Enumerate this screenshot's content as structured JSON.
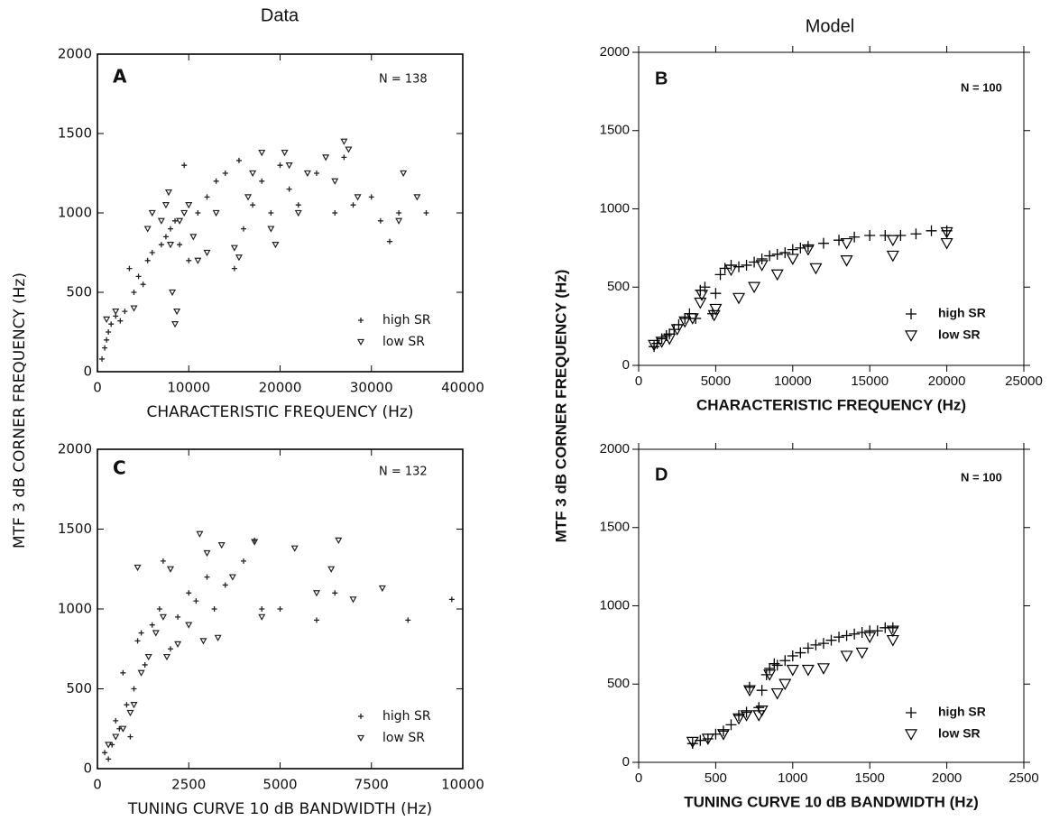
{
  "figure": {
    "column_titles": [
      "Data",
      "Model"
    ],
    "y_labels": [
      "MTF 3 dB CORNER FREQUENCY (Hz)",
      "MTF  3  dB  CORNER  FREQUENCY  (Hz)"
    ]
  },
  "chart_data": [
    {
      "type": "scatter",
      "panel": "A",
      "annotation": "N = 138",
      "x_label": "CHARACTERISTIC FREQUENCY (Hz)",
      "xlim": [
        0,
        40000
      ],
      "xticks": [
        0,
        10000,
        20000,
        30000,
        40000
      ],
      "ylim": [
        0,
        2000
      ],
      "yticks": [
        0,
        500,
        1000,
        1500,
        2000
      ],
      "legend": "lower right",
      "series": [
        {
          "name": "high SR",
          "marker": "plus",
          "color": "#222",
          "x": [
            500,
            800,
            1000,
            1200,
            1500,
            2000,
            2500,
            3000,
            3500,
            4000,
            4500,
            5000,
            5500,
            6000,
            7000,
            7500,
            8000,
            8500,
            9000,
            9500,
            10000,
            11000,
            12000,
            13000,
            14000,
            15000,
            15500,
            16000,
            17000,
            18000,
            19000,
            20000,
            21000,
            22000,
            24000,
            26000,
            27000,
            28000,
            30000,
            31000,
            32000,
            33000,
            36000
          ],
          "values": [
            80,
            150,
            200,
            250,
            300,
            350,
            320,
            380,
            650,
            500,
            600,
            550,
            700,
            750,
            800,
            850,
            900,
            950,
            800,
            1300,
            700,
            1000,
            1100,
            1200,
            1250,
            650,
            1330,
            900,
            1050,
            1200,
            1000,
            1300,
            1150,
            1050,
            1250,
            1000,
            1350,
            1050,
            1100,
            950,
            820,
            1000,
            1000
          ]
        },
        {
          "name": "low SR",
          "marker": "triangle",
          "color": "#222",
          "x": [
            1000,
            2000,
            4000,
            5500,
            6000,
            7000,
            7500,
            7800,
            8000,
            8200,
            8500,
            8700,
            9000,
            9500,
            10000,
            10500,
            11000,
            12000,
            13000,
            15000,
            15500,
            16500,
            17000,
            18000,
            19000,
            19500,
            20500,
            21000,
            22000,
            23000,
            25000,
            26000,
            27000,
            27500,
            28500,
            33000,
            33500,
            35000
          ],
          "values": [
            330,
            380,
            400,
            900,
            1000,
            950,
            1050,
            1130,
            800,
            500,
            300,
            380,
            950,
            1000,
            1050,
            850,
            700,
            750,
            1000,
            780,
            720,
            1100,
            1250,
            1380,
            900,
            800,
            1380,
            1300,
            1000,
            1250,
            1350,
            1200,
            1450,
            1400,
            1100,
            950,
            1250,
            1100
          ]
        }
      ]
    },
    {
      "type": "scatter",
      "panel": "B",
      "annotation": "N = 100",
      "x_label": "CHARACTERISTIC FREQUENCY (Hz)",
      "xlim": [
        0,
        25000
      ],
      "xticks": [
        0,
        5000,
        10000,
        15000,
        20000,
        25000
      ],
      "ylim": [
        0,
        2000
      ],
      "yticks": [
        0,
        500,
        1000,
        1500,
        2000
      ],
      "legend": "lower right",
      "series": [
        {
          "name": "high SR",
          "marker": "plus",
          "color": "#000",
          "x": [
            1000,
            1200,
            1500,
            1800,
            2000,
            2300,
            2600,
            3000,
            3300,
            3700,
            4000,
            4300,
            4800,
            5000,
            5300,
            5600,
            6000,
            6500,
            7000,
            7500,
            8000,
            8500,
            9000,
            9500,
            10000,
            10500,
            11000,
            12000,
            13000,
            14000,
            15000,
            16000,
            17000,
            18000,
            19000,
            20000
          ],
          "values": [
            120,
            140,
            170,
            190,
            200,
            230,
            260,
            300,
            330,
            300,
            480,
            500,
            330,
            460,
            580,
            620,
            640,
            630,
            640,
            660,
            680,
            700,
            710,
            720,
            740,
            750,
            760,
            780,
            800,
            820,
            830,
            830,
            830,
            840,
            860,
            860
          ]
        },
        {
          "name": "low SR",
          "marker": "triangle",
          "color": "#000",
          "x": [
            1000,
            1500,
            2000,
            2500,
            3000,
            3500,
            4000,
            4100,
            4900,
            5000,
            6000,
            6500,
            7500,
            8000,
            9000,
            10000,
            11000,
            11500,
            13500,
            13500,
            16500,
            16500,
            20000,
            20000
          ],
          "values": [
            130,
            150,
            170,
            230,
            280,
            300,
            400,
            450,
            320,
            360,
            610,
            430,
            500,
            640,
            580,
            680,
            740,
            620,
            670,
            780,
            700,
            800,
            780,
            850
          ]
        }
      ]
    },
    {
      "type": "scatter",
      "panel": "C",
      "annotation": "N = 132",
      "x_label": "TUNING CURVE 10 dB BANDWIDTH (Hz)",
      "xlim": [
        0,
        10000
      ],
      "xticks": [
        0,
        2500,
        5000,
        7500,
        10000
      ],
      "ylim": [
        0,
        2000
      ],
      "yticks": [
        0,
        500,
        1000,
        1500,
        2000
      ],
      "series": [
        {
          "name": "high SR",
          "marker": "plus",
          "color": "#222",
          "x": [
            200,
            300,
            400,
            500,
            600,
            700,
            800,
            900,
            1000,
            1100,
            1200,
            1300,
            1500,
            1700,
            1800,
            2000,
            2200,
            2500,
            2700,
            3000,
            3200,
            3500,
            4000,
            4300,
            4500,
            5000,
            6000,
            6500,
            8500,
            9700
          ],
          "values": [
            100,
            60,
            150,
            300,
            250,
            600,
            400,
            200,
            500,
            800,
            850,
            650,
            900,
            1000,
            1300,
            750,
            950,
            1100,
            1050,
            1200,
            1000,
            1150,
            1300,
            1430,
            1000,
            1000,
            930,
            1100,
            930,
            1060
          ]
        },
        {
          "name": "low SR",
          "marker": "triangle",
          "color": "#222",
          "x": [
            300,
            500,
            700,
            900,
            1000,
            1100,
            1200,
            1400,
            1600,
            1800,
            1900,
            2000,
            2200,
            2500,
            2800,
            2900,
            3000,
            3300,
            3400,
            3700,
            4300,
            4500,
            5400,
            6000,
            6400,
            6600,
            7000,
            7800
          ],
          "values": [
            150,
            200,
            250,
            350,
            400,
            1260,
            600,
            700,
            850,
            950,
            700,
            1250,
            780,
            900,
            1470,
            800,
            1350,
            820,
            1400,
            1200,
            1420,
            950,
            1380,
            1100,
            1250,
            1430,
            1060,
            1130
          ]
        }
      ]
    },
    {
      "type": "scatter",
      "panel": "D",
      "annotation": "N = 100",
      "x_label": "TUNING CURVE 10 dB BANDWIDTH (Hz)",
      "xlim": [
        0,
        2500
      ],
      "xticks": [
        0,
        500,
        1000,
        1500,
        2000,
        2500
      ],
      "ylim": [
        0,
        2000
      ],
      "yticks": [
        0,
        500,
        1000,
        1500,
        2000
      ],
      "legend": "lower right",
      "series": [
        {
          "name": "high SR",
          "marker": "plus",
          "color": "#000",
          "x": [
            350,
            400,
            450,
            500,
            550,
            600,
            650,
            700,
            720,
            780,
            800,
            830,
            850,
            880,
            900,
            950,
            1000,
            1050,
            1100,
            1150,
            1200,
            1250,
            1300,
            1350,
            1400,
            1450,
            1500,
            1550,
            1600,
            1650
          ],
          "values": [
            120,
            140,
            150,
            180,
            200,
            240,
            300,
            320,
            480,
            350,
            460,
            560,
            600,
            630,
            620,
            650,
            680,
            700,
            730,
            750,
            760,
            780,
            800,
            810,
            820,
            830,
            840,
            840,
            860,
            860
          ]
        },
        {
          "name": "low SR",
          "marker": "triangle",
          "color": "#000",
          "x": [
            350,
            450,
            550,
            650,
            700,
            720,
            780,
            800,
            850,
            900,
            950,
            1000,
            1100,
            1200,
            1350,
            1450,
            1500,
            1650,
            1650
          ],
          "values": [
            130,
            150,
            180,
            280,
            300,
            460,
            300,
            330,
            560,
            440,
            500,
            590,
            590,
            600,
            680,
            700,
            800,
            780,
            840
          ]
        }
      ]
    }
  ]
}
